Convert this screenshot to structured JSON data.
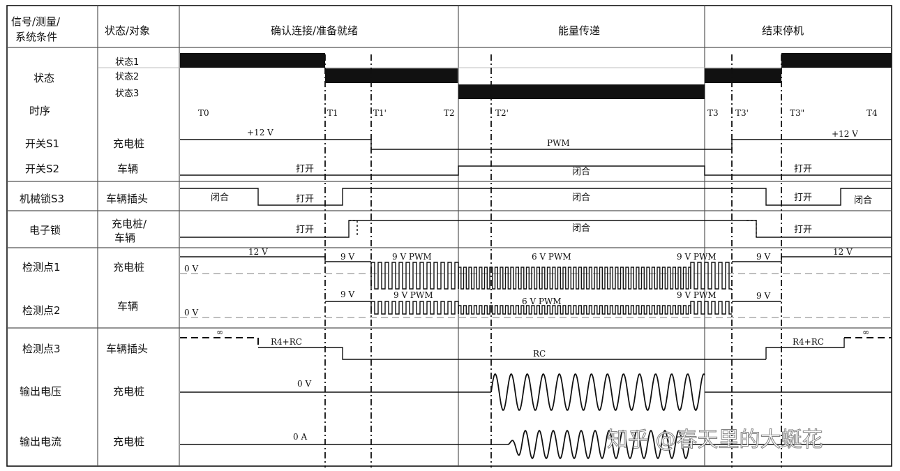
{
  "header": {
    "col1_lines": [
      "信号/测量/",
      "系统条件"
    ],
    "col2": "状态/对象",
    "phase_confirm": "确认连接/准备就绪",
    "phase_energy": "能量传递",
    "phase_end": "结束停机"
  },
  "rows": {
    "state": "状态",
    "state1": "状态1",
    "state2": "状态2",
    "state3": "状态3",
    "timing": "时序",
    "switch_s1": "开关S1",
    "switch_s1_obj": "充电桩",
    "switch_s2": "开关S2",
    "switch_s2_obj": "车辆",
    "lock_s3": "机械锁S3",
    "lock_s3_obj": "车辆插头",
    "e_lock": "电子锁",
    "e_lock_obj_lines": [
      "充电桩/",
      "车辆"
    ],
    "detect1": "检测点1",
    "detect1_obj": "充电桩",
    "detect2": "检测点2",
    "detect2_obj": "车辆",
    "detect3": "检测点3",
    "detect3_obj": "车辆插头",
    "out_voltage": "输出电压",
    "out_voltage_obj": "充电桩",
    "out_current": "输出电流",
    "out_current_obj": "充电桩"
  },
  "times": [
    "T0",
    "T1",
    "T1'",
    "T2",
    "T2'",
    "T3",
    "T3'",
    "T3\"",
    "T4"
  ],
  "signal_labels": {
    "s1_12v_left": "+12 V",
    "s1_pwm": "PWM",
    "s1_12v_right": "+12 V",
    "s2_open_left": "打开",
    "s2_closed": "闭合",
    "s2_open_right": "打开",
    "s3_closed_left": "闭合",
    "s3_open_left": "打开",
    "s3_closed_mid": "闭合",
    "s3_open_right": "打开",
    "s3_closed_right": "闭合",
    "el_open_left": "打开",
    "el_closed": "闭合",
    "el_open_right": "打开",
    "d1_12v_left": "12 V",
    "d1_9v": "9 V",
    "d1_9vpwm": "9 V PWM",
    "d1_6vpwm": "6 V PWM",
    "d1_9vpwm_right": "9 V PWM",
    "d1_9v_right": "9 V",
    "d1_12v_right": "12 V",
    "d1_0v": "0 V",
    "d2_9v": "9 V",
    "d2_9vpwm": "9 V PWM",
    "d2_6vpwm": "6 V PWM",
    "d2_9vpwm_right": "9 V PWM",
    "d2_9v_right": "9 V",
    "d2_0v": "0 V",
    "d3_inf_left": "∞",
    "d3_r4rc_left": "R4+RC",
    "d3_rc": "RC",
    "d3_r4rc_right": "R4+RC",
    "d3_inf_right": "∞",
    "ov_0v": "0 V",
    "oc_0a": "0 A"
  },
  "watermark": "知乎 @春天里的大蜒花",
  "colors": {
    "line": "#111111",
    "grid": "#555555",
    "dashed_ref": "#999999"
  }
}
